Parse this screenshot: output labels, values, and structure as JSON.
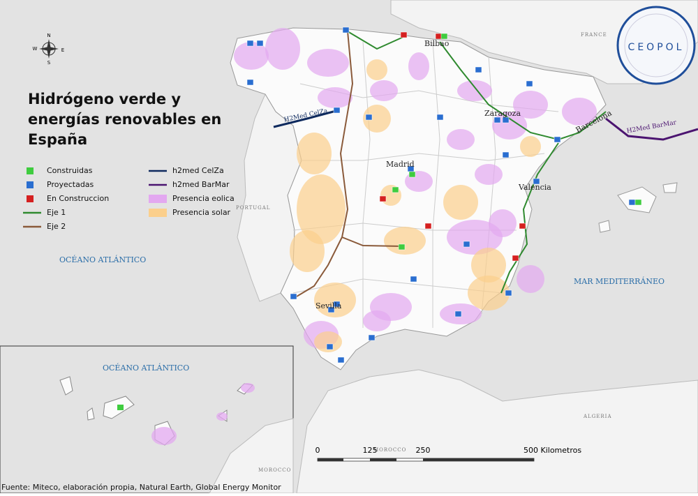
{
  "title_lines": [
    "Hidrógeno verde y",
    "energías renovables en",
    "España"
  ],
  "legend": [
    "Construidas",
    "Proyectadas",
    "En Construccion",
    "Eje 1",
    "Eje 2",
    "h2med CelZa",
    "h2med BarMar",
    "Presencia eolica",
    "Presencia solar"
  ],
  "map_labels": {
    "france": "FRANCE",
    "portugal": "PORTUGAL",
    "atlantic": "OCÉANO ATLÁNTICO",
    "mediterranean": "MAR MEDITERRÁNEO",
    "algeria": "ALGERIA",
    "morocco": "MOROCCO"
  },
  "cities": [
    "Bilbao",
    "Zaragoza",
    "Barcelona",
    "Madrid",
    "Valencia",
    "Sevilla"
  ],
  "pipelines": [
    "H2Med CelZa",
    "H2Med BarMar"
  ],
  "scale_bar": [
    "0",
    "125",
    "250",
    "500 Kilometros"
  ],
  "compass": [
    "N",
    "S",
    "E",
    "W"
  ],
  "logo": "CEOPOL",
  "inset": {
    "sea": "OCÉANO ATLÁNTICO",
    "country": "MOROCCO"
  },
  "source": "Fuente: Miteco, elaboración propia, Natural Earth, Global Energy Monitor"
}
